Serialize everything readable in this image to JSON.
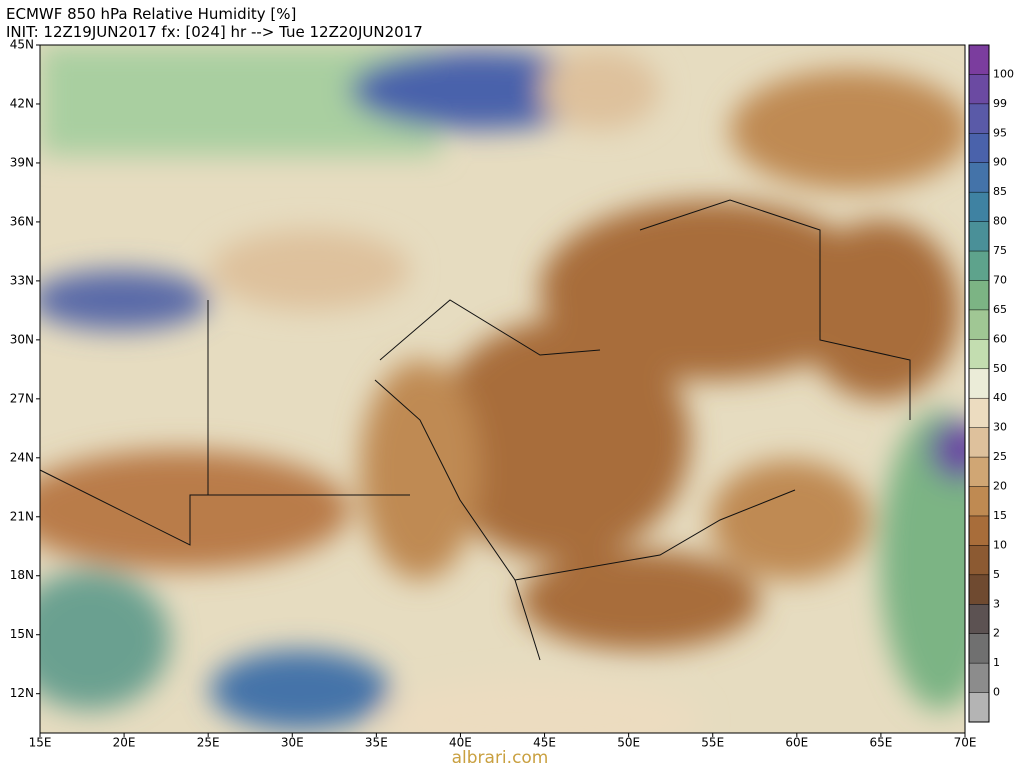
{
  "header": {
    "title": "ECMWF 850 hPa Relative Humidity [%]",
    "subtitle": "INIT: 12Z19JUN2017 fx: [024] hr --> Tue 12Z20JUN2017"
  },
  "map": {
    "lat_ticks": [
      {
        "value": 45,
        "label": "45N"
      },
      {
        "value": 42,
        "label": "42N"
      },
      {
        "value": 39,
        "label": "39N"
      },
      {
        "value": 36,
        "label": "36N"
      },
      {
        "value": 33,
        "label": "33N"
      },
      {
        "value": 30,
        "label": "30N"
      },
      {
        "value": 27,
        "label": "27N"
      },
      {
        "value": 24,
        "label": "24N"
      },
      {
        "value": 21,
        "label": "21N"
      },
      {
        "value": 18,
        "label": "18N"
      },
      {
        "value": 15,
        "label": "15N"
      },
      {
        "value": 12,
        "label": "12N"
      }
    ],
    "lon_ticks": [
      {
        "value": 15,
        "label": "15E"
      },
      {
        "value": 20,
        "label": "20E"
      },
      {
        "value": 25,
        "label": "25E"
      },
      {
        "value": 30,
        "label": "30E"
      },
      {
        "value": 35,
        "label": "35E"
      },
      {
        "value": 40,
        "label": "40E"
      },
      {
        "value": 45,
        "label": "45E"
      },
      {
        "value": 50,
        "label": "50E"
      },
      {
        "value": 55,
        "label": "55E"
      },
      {
        "value": 60,
        "label": "60E"
      },
      {
        "value": 65,
        "label": "65E"
      },
      {
        "value": 70,
        "label": "70E"
      }
    ]
  },
  "colorbar": {
    "levels": [
      100,
      99,
      95,
      90,
      85,
      80,
      75,
      70,
      65,
      60,
      50,
      40,
      30,
      25,
      20,
      15,
      10,
      5,
      3,
      2,
      1,
      0
    ],
    "colors": [
      "#7b3d9e",
      "#6b4aa2",
      "#5a5aa8",
      "#4a62ab",
      "#4473a9",
      "#3f82a2",
      "#4a9098",
      "#5ea38c",
      "#7cb484",
      "#a0c794",
      "#c3ddb0",
      "#ebecd8",
      "#ecdcc0",
      "#dec19c",
      "#d0a674",
      "#bf8a52",
      "#a86d3a",
      "#8c5a32",
      "#6f4a30",
      "#5c5252",
      "#707070",
      "#8c8c8c",
      "#b4b4b4"
    ]
  },
  "watermark": "albrari.com"
}
